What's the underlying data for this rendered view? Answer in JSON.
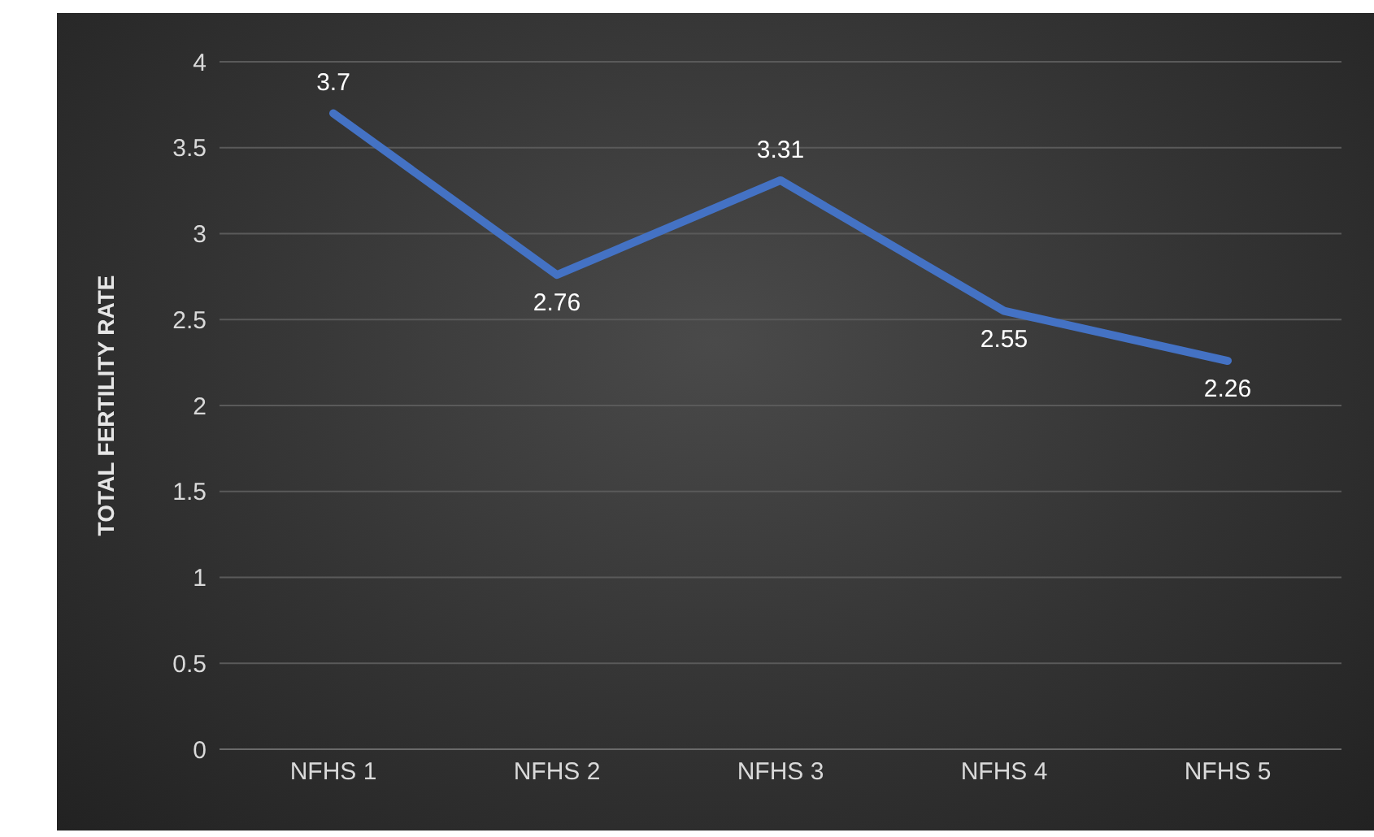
{
  "chart_data": {
    "type": "line",
    "ylabel": "TOTAL FERTILITY RATE",
    "categories": [
      "NFHS 1",
      "NFHS 2",
      "NFHS 3",
      "NFHS 4",
      "NFHS 5"
    ],
    "series": [
      {
        "color": "#4472c4",
        "values": [
          3.7,
          2.76,
          3.31,
          2.55,
          2.26
        ]
      }
    ],
    "ylim": [
      0,
      4
    ],
    "yticks": [
      0,
      0.5,
      1,
      1.5,
      2,
      2.5,
      3,
      3.5,
      4
    ],
    "grid": "y",
    "data_labels": true,
    "marker": "none",
    "line_style": "solid",
    "legend": false
  }
}
